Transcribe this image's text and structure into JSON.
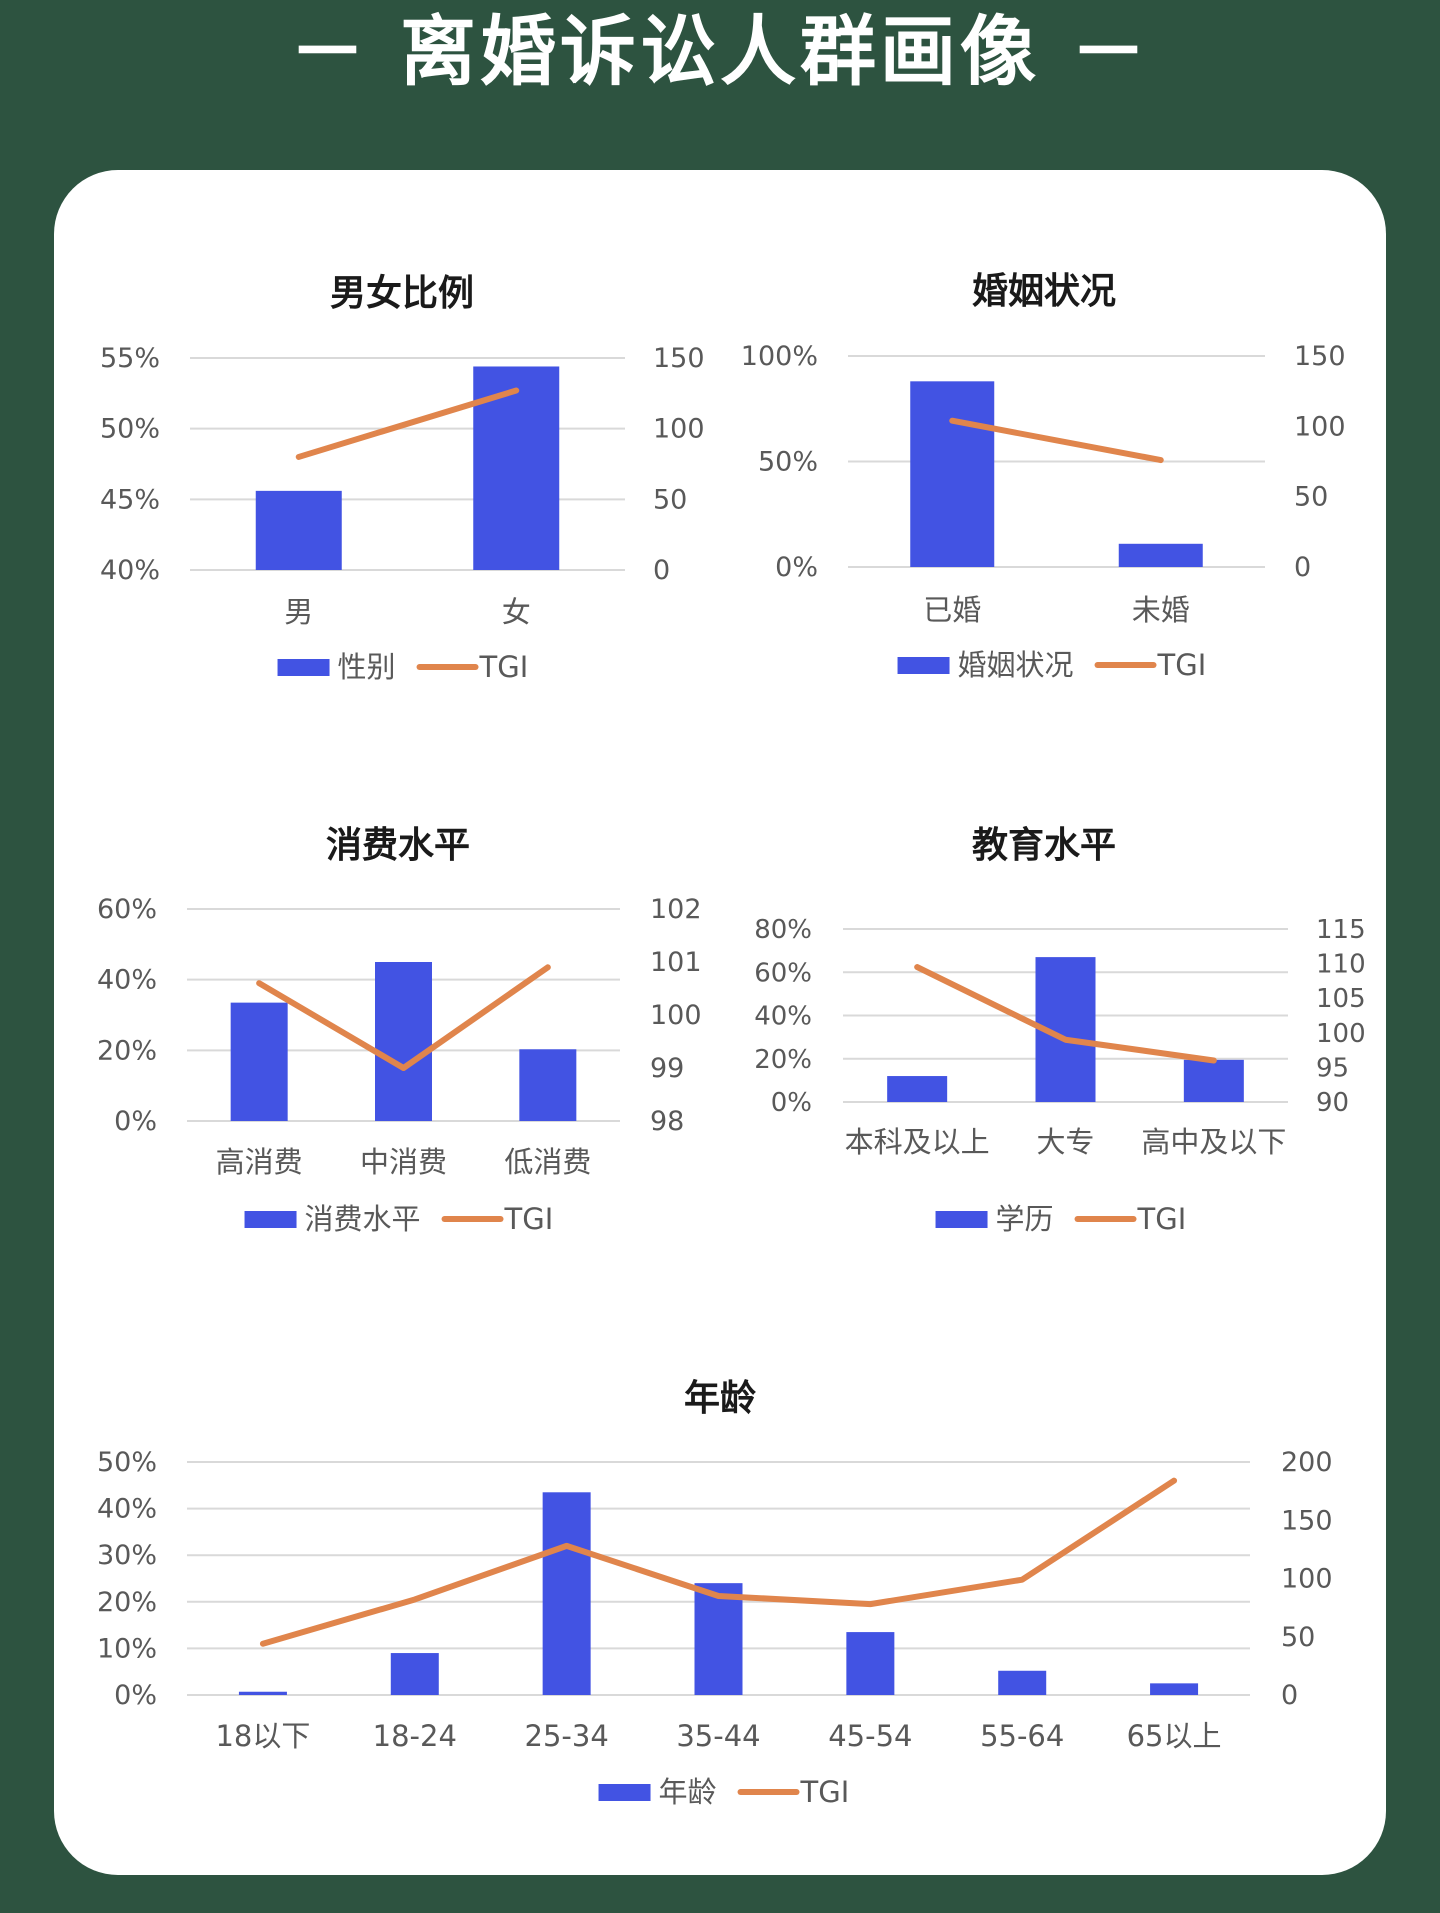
{
  "page": {
    "title": "－ 离婚诉讼人群画像 －"
  },
  "colors": {
    "bar": "#4253e3",
    "line": "#e0854c",
    "grid": "#d9d9d9",
    "text": "#595959",
    "title_text": "#1a1a1a"
  },
  "chart_data": [
    {
      "id": "gender",
      "type": "bar",
      "title": "男女比例",
      "categories": [
        "男",
        "女"
      ],
      "series": [
        {
          "name": "性别",
          "type": "bar",
          "axis": "left",
          "values": [
            45.6,
            54.4
          ]
        },
        {
          "name": "TGI",
          "type": "line",
          "axis": "right",
          "values": [
            80,
            127
          ]
        }
      ],
      "y_left": {
        "min": 40,
        "max": 55,
        "ticks": [
          "40%",
          "45%",
          "50%",
          "55%"
        ]
      },
      "y_right": {
        "min": 0,
        "max": 150,
        "ticks": [
          "0",
          "50",
          "100",
          "150"
        ]
      },
      "grid": true,
      "legend_position": "bottom"
    },
    {
      "id": "marital",
      "type": "bar",
      "title": "婚姻状况",
      "categories": [
        "已婚",
        "未婚"
      ],
      "series": [
        {
          "name": "婚姻状况",
          "type": "bar",
          "axis": "left",
          "values": [
            88,
            11
          ]
        },
        {
          "name": "TGI",
          "type": "line",
          "axis": "right",
          "values": [
            104,
            76
          ]
        }
      ],
      "y_left": {
        "min": 0,
        "max": 100,
        "ticks": [
          "0%",
          "50%",
          "100%"
        ]
      },
      "y_right": {
        "min": 0,
        "max": 150,
        "ticks": [
          "0",
          "50",
          "100",
          "150"
        ]
      },
      "grid": true,
      "legend_position": "bottom"
    },
    {
      "id": "consumption",
      "type": "bar",
      "title": "消费水平",
      "categories": [
        "高消费",
        "中消费",
        "低消费"
      ],
      "series": [
        {
          "name": "消费水平",
          "type": "bar",
          "axis": "left",
          "values": [
            33.5,
            45,
            20.3
          ]
        },
        {
          "name": "TGI",
          "type": "line",
          "axis": "right",
          "values": [
            100.6,
            99.0,
            100.9
          ]
        }
      ],
      "y_left": {
        "min": 0,
        "max": 60,
        "ticks": [
          "0%",
          "20%",
          "40%",
          "60%"
        ]
      },
      "y_right": {
        "min": 98,
        "max": 102,
        "ticks": [
          "98",
          "99",
          "100",
          "101",
          "102"
        ]
      },
      "grid": true,
      "legend_position": "bottom"
    },
    {
      "id": "education",
      "type": "bar",
      "title": "教育水平",
      "categories": [
        "本科及以上",
        "大专",
        "高中及以下"
      ],
      "series": [
        {
          "name": "学历",
          "type": "bar",
          "axis": "left",
          "values": [
            12,
            67,
            19.5
          ]
        },
        {
          "name": "TGI",
          "type": "line",
          "axis": "right",
          "values": [
            109.5,
            99,
            96
          ]
        }
      ],
      "y_left": {
        "min": 0,
        "max": 80,
        "ticks": [
          "0%",
          "20%",
          "40%",
          "60%",
          "80%"
        ]
      },
      "y_right": {
        "min": 90,
        "max": 115,
        "ticks": [
          "90",
          "95",
          "100",
          "105",
          "110",
          "115"
        ]
      },
      "grid": true,
      "legend_position": "bottom"
    },
    {
      "id": "age",
      "type": "bar",
      "title": "年龄",
      "categories": [
        "18以下",
        "18-24",
        "25-34",
        "35-44",
        "45-54",
        "55-64",
        "65以上"
      ],
      "series": [
        {
          "name": "年龄",
          "type": "bar",
          "axis": "left",
          "values": [
            0.7,
            9,
            43.5,
            24,
            13.5,
            5.2,
            2.5
          ]
        },
        {
          "name": "TGI",
          "type": "line",
          "axis": "right",
          "values": [
            44,
            82,
            128,
            85,
            78,
            99,
            184
          ]
        }
      ],
      "y_left": {
        "min": 0,
        "max": 50,
        "ticks": [
          "0%",
          "10%",
          "20%",
          "30%",
          "40%",
          "50%"
        ]
      },
      "y_right": {
        "min": 0,
        "max": 200,
        "ticks": [
          "0",
          "50",
          "100",
          "150",
          "200"
        ]
      },
      "grid": true,
      "legend_position": "bottom"
    }
  ]
}
